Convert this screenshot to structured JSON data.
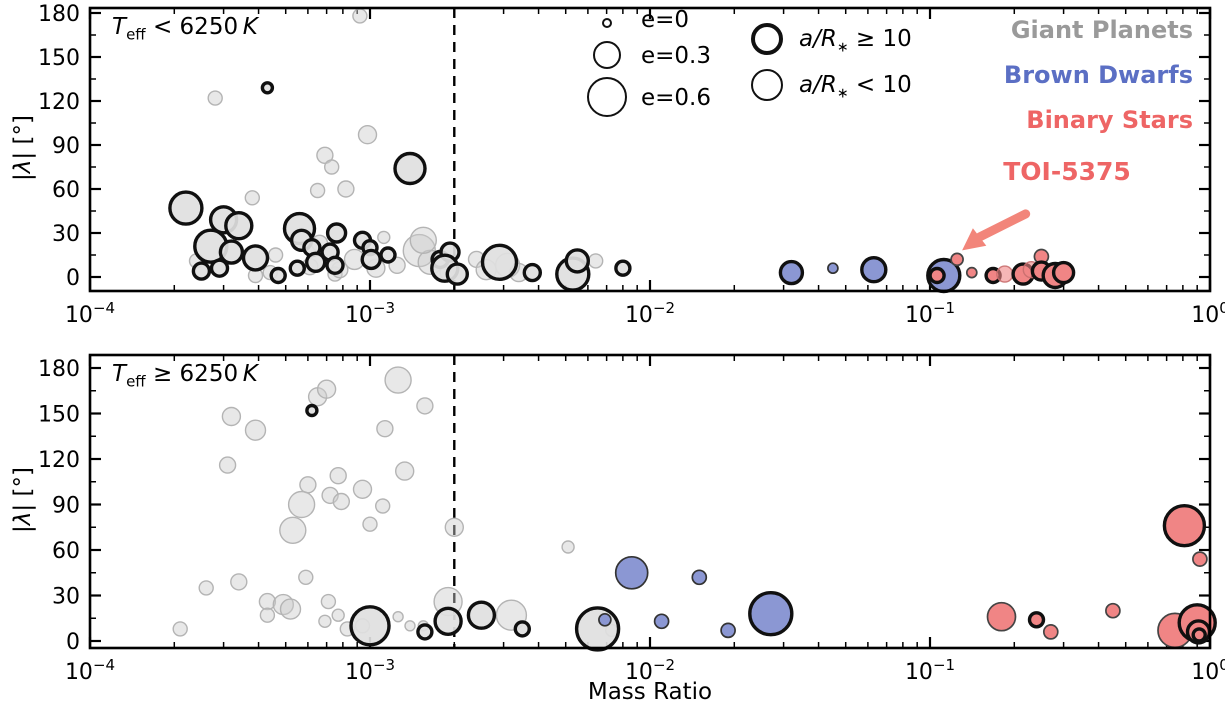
{
  "figure": {
    "xlabel": "Mass Ratio",
    "ylabel": {
      "p1": "|",
      "p2": "λ",
      "p3": "| [°]"
    },
    "colors": {
      "giant_fill": "#e0e0e0",
      "giant_text": "#9a9a9a",
      "bd_fill": "#8b97d3",
      "bd_text": "#5b6fc4",
      "binary_fill": "#f08585",
      "binary_text": "#ee6565",
      "arrow": "#f2857a",
      "axis": "#000000"
    },
    "legend": {
      "size": [
        {
          "label": "e=0",
          "r": 5
        },
        {
          "label": "e=0.3",
          "r": 14
        },
        {
          "label": "e=0.6",
          "r": 20
        }
      ],
      "ring": [
        {
          "prefix": "a/R",
          "sub": "∗",
          "rest": " ≥ 10",
          "style": "thick"
        },
        {
          "prefix": "a/R",
          "sub": "∗",
          "rest": " < 10",
          "style": "thin"
        }
      ],
      "groups": [
        {
          "label": "Giant Planets",
          "color": "#9a9a9a"
        },
        {
          "label": "Brown Dwarfs",
          "color": "#5b6fc4"
        },
        {
          "label": "Binary Stars",
          "color": "#ee6565"
        }
      ]
    },
    "annotation": {
      "text": "TOI-5375"
    }
  },
  "chart_data": {
    "type": "scatter",
    "x_scale": "log",
    "xlabel": "Mass Ratio",
    "ylabel": "|λ| [°]",
    "xlim": [
      0.0001,
      1
    ],
    "ylim": [
      0,
      180
    ],
    "yticks": [
      0,
      30,
      60,
      90,
      120,
      150,
      180
    ],
    "xtick_exponents": [
      -4,
      -3,
      -2,
      -1,
      0
    ],
    "dashed_line_x": 0.002,
    "size_encoding": "circle radius = eccentricity (e=0 small, e=0.3 medium, e=0.6 large)",
    "ring_encoding": "thick outline: a/R* >= 10, thin outline: a/R* < 10",
    "color_encoding": {
      "g": "Giant Planets",
      "b": "Brown Dwarfs",
      "r": "Binary Stars"
    },
    "panels": [
      {
        "id": "teff-lt-6250",
        "label": {
          "t": "T",
          "sub": "eff",
          "cmp": " < ",
          "value": "6250 ",
          "unit": "K"
        },
        "toi": {
          "x": 0.125,
          "y": 12
        },
        "points": [
          [
            0.00028,
            122,
            7,
            "g",
            "f"
          ],
          [
            0.00092,
            178,
            7,
            "g",
            "f"
          ],
          [
            0.00038,
            54,
            7,
            "g",
            "f"
          ],
          [
            0.00065,
            59,
            7,
            "g",
            "f"
          ],
          [
            0.00082,
            60,
            8,
            "g",
            "f"
          ],
          [
            0.00069,
            83,
            8,
            "g",
            "f"
          ],
          [
            0.00098,
            97,
            9,
            "g",
            "f"
          ],
          [
            0.00073,
            75,
            7,
            "g",
            "f"
          ],
          [
            0.00024,
            11,
            7,
            "g",
            "f"
          ],
          [
            0.00039,
            1,
            7,
            "g",
            "f"
          ],
          [
            0.00044,
            3,
            7,
            "g",
            "f"
          ],
          [
            0.00075,
            2,
            7,
            "g",
            "f"
          ],
          [
            0.00066,
            23,
            8,
            "g",
            "f"
          ],
          [
            0.00061,
            7,
            8,
            "g",
            "f"
          ],
          [
            0.00078,
            5,
            8,
            "g",
            "f"
          ],
          [
            0.00088,
            12,
            10,
            "g",
            "f"
          ],
          [
            0.00105,
            6,
            9,
            "g",
            "f"
          ],
          [
            0.0015,
            18,
            16,
            "g",
            "f"
          ],
          [
            0.00164,
            10,
            12,
            "g",
            "f"
          ],
          [
            0.00155,
            25,
            13,
            "g",
            "f"
          ],
          [
            0.0019,
            3,
            8,
            "g",
            "f"
          ],
          [
            0.0024,
            12,
            8,
            "g",
            "f"
          ],
          [
            0.0026,
            5,
            10,
            "g",
            "f"
          ],
          [
            0.0031,
            8,
            12,
            "g",
            "f"
          ],
          [
            0.0034,
            3,
            9,
            "g",
            "f"
          ],
          [
            0.0064,
            11,
            7,
            "g",
            "f"
          ],
          [
            0.00125,
            8,
            8,
            "g",
            "f"
          ],
          [
            0.00046,
            15,
            7,
            "g",
            "f"
          ],
          [
            0.00112,
            27,
            6,
            "g",
            "f"
          ],
          [
            0.00043,
            129,
            5,
            "g",
            "t"
          ],
          [
            0.00022,
            47,
            16,
            "g",
            "t"
          ],
          [
            0.0003,
            39,
            13,
            "g",
            "t"
          ],
          [
            0.00034,
            35,
            13,
            "g",
            "t"
          ],
          [
            0.00027,
            21,
            16,
            "g",
            "t"
          ],
          [
            0.00032,
            17,
            11,
            "g",
            "t"
          ],
          [
            0.00039,
            13,
            12,
            "g",
            "t"
          ],
          [
            0.00025,
            4,
            8,
            "g",
            "t"
          ],
          [
            0.00029,
            6,
            8,
            "g",
            "t"
          ],
          [
            0.00047,
            1,
            7,
            "g",
            "t"
          ],
          [
            0.00056,
            33,
            15,
            "g",
            "t"
          ],
          [
            0.00057,
            25,
            10,
            "g",
            "t"
          ],
          [
            0.00062,
            20,
            8,
            "g",
            "t"
          ],
          [
            0.00064,
            10,
            9,
            "g",
            "t"
          ],
          [
            0.00055,
            6,
            7,
            "g",
            "t"
          ],
          [
            0.00076,
            30,
            9,
            "g",
            "t"
          ],
          [
            0.00072,
            17,
            8,
            "g",
            "t"
          ],
          [
            0.00075,
            8,
            8,
            "g",
            "t"
          ],
          [
            0.00094,
            25,
            8,
            "g",
            "t"
          ],
          [
            0.001,
            20,
            7,
            "g",
            "t"
          ],
          [
            0.00101,
            12,
            9,
            "g",
            "t"
          ],
          [
            0.00116,
            15,
            7,
            "g",
            "t"
          ],
          [
            0.00139,
            74,
            15,
            "g",
            "t"
          ],
          [
            0.00178,
            12,
            8,
            "g",
            "t"
          ],
          [
            0.00193,
            17,
            9,
            "g",
            "t"
          ],
          [
            0.00185,
            6,
            13,
            "g",
            "t"
          ],
          [
            0.00205,
            2,
            10,
            "g",
            "t"
          ],
          [
            0.0029,
            10,
            17,
            "g",
            "t"
          ],
          [
            0.0038,
            3,
            8,
            "g",
            "t"
          ],
          [
            0.0053,
            2,
            16,
            "g",
            "t"
          ],
          [
            0.0055,
            11,
            11,
            "g",
            "t"
          ],
          [
            0.008,
            6,
            7,
            "g",
            "t"
          ],
          [
            0.032,
            3,
            11,
            "b",
            "t"
          ],
          [
            0.045,
            6,
            5,
            "b",
            "n"
          ],
          [
            0.063,
            5,
            12,
            "b",
            "t"
          ],
          [
            0.112,
            1,
            16,
            "b",
            "t"
          ],
          [
            0.106,
            1,
            7,
            "r",
            "t"
          ],
          [
            0.125,
            12,
            6,
            "r",
            "n"
          ],
          [
            0.141,
            3,
            5,
            "r",
            "n"
          ],
          [
            0.168,
            1,
            7,
            "r",
            "t"
          ],
          [
            0.185,
            2,
            8,
            "r",
            "f"
          ],
          [
            0.215,
            2,
            10,
            "r",
            "t"
          ],
          [
            0.23,
            5,
            8,
            "r",
            "f"
          ],
          [
            0.25,
            14,
            7,
            "r",
            "n"
          ],
          [
            0.25,
            4,
            9,
            "r",
            "t"
          ],
          [
            0.28,
            1,
            12,
            "r",
            "t"
          ],
          [
            0.3,
            3,
            10,
            "r",
            "t"
          ]
        ]
      },
      {
        "id": "teff-ge-6250",
        "label": {
          "t": "T",
          "sub": "eff",
          "cmp": " ≥ ",
          "value": "6250 ",
          "unit": "K"
        },
        "points": [
          [
            0.00032,
            148,
            9,
            "g",
            "f"
          ],
          [
            0.00039,
            139,
            10,
            "g",
            "f"
          ],
          [
            0.00031,
            116,
            8,
            "g",
            "f"
          ],
          [
            0.00065,
            161,
            9,
            "g",
            "f"
          ],
          [
            0.0007,
            166,
            9,
            "g",
            "f"
          ],
          [
            0.00126,
            172,
            13,
            "g",
            "f"
          ],
          [
            0.00157,
            155,
            8,
            "g",
            "f"
          ],
          [
            0.00113,
            140,
            8,
            "g",
            "f"
          ],
          [
            0.00133,
            112,
            9,
            "g",
            "f"
          ],
          [
            0.0006,
            103,
            8,
            "g",
            "f"
          ],
          [
            0.00057,
            90,
            13,
            "g",
            "f"
          ],
          [
            0.00072,
            96,
            8,
            "g",
            "f"
          ],
          [
            0.00079,
            92,
            8,
            "g",
            "f"
          ],
          [
            0.00094,
            100,
            9,
            "g",
            "f"
          ],
          [
            0.00077,
            109,
            8,
            "g",
            "f"
          ],
          [
            0.00111,
            89,
            7,
            "g",
            "f"
          ],
          [
            0.00053,
            73,
            13,
            "g",
            "f"
          ],
          [
            0.001,
            77,
            7,
            "g",
            "f"
          ],
          [
            0.002,
            75,
            9,
            "g",
            "f"
          ],
          [
            0.00026,
            35,
            7,
            "g",
            "f"
          ],
          [
            0.00034,
            39,
            8,
            "g",
            "f"
          ],
          [
            0.00059,
            42,
            7,
            "g",
            "f"
          ],
          [
            0.00021,
            8,
            7,
            "g",
            "f"
          ],
          [
            0.00043,
            26,
            8,
            "g",
            "f"
          ],
          [
            0.00043,
            17,
            7,
            "g",
            "f"
          ],
          [
            0.00049,
            24,
            10,
            "g",
            "f"
          ],
          [
            0.00052,
            21,
            10,
            "g",
            "f"
          ],
          [
            0.00071,
            26,
            7,
            "g",
            "f"
          ],
          [
            0.00069,
            13,
            6,
            "g",
            "f"
          ],
          [
            0.00077,
            17,
            6,
            "g",
            "f"
          ],
          [
            0.00083,
            8,
            7,
            "g",
            "f"
          ],
          [
            0.00094,
            10,
            7,
            "g",
            "f"
          ],
          [
            0.00126,
            16,
            5,
            "g",
            "f"
          ],
          [
            0.00139,
            10,
            5,
            "g",
            "f"
          ],
          [
            0.00155,
            10,
            5,
            "g",
            "f"
          ],
          [
            0.0019,
            26,
            14,
            "g",
            "f"
          ],
          [
            0.0032,
            17,
            15,
            "g",
            "f"
          ],
          [
            0.0051,
            62,
            6,
            "g",
            "f"
          ],
          [
            0.0073,
            7,
            6,
            "g",
            "f"
          ],
          [
            0.00062,
            152,
            5,
            "g",
            "t"
          ],
          [
            0.001,
            10,
            19,
            "g",
            "t"
          ],
          [
            0.00157,
            6,
            7,
            "g",
            "t"
          ],
          [
            0.0019,
            13,
            13,
            "g",
            "t"
          ],
          [
            0.0025,
            17,
            13,
            "g",
            "t"
          ],
          [
            0.0035,
            8,
            7,
            "g",
            "t"
          ],
          [
            0.0065,
            8,
            21,
            "g",
            "t"
          ],
          [
            0.0069,
            14,
            6,
            "b",
            "n"
          ],
          [
            0.0086,
            45,
            16,
            "b",
            "n"
          ],
          [
            0.011,
            13,
            7,
            "b",
            "n"
          ],
          [
            0.015,
            42,
            7,
            "b",
            "n"
          ],
          [
            0.019,
            7,
            7,
            "b",
            "n"
          ],
          [
            0.027,
            18,
            21,
            "b",
            "t"
          ],
          [
            0.18,
            16,
            14,
            "r",
            "n"
          ],
          [
            0.24,
            14,
            7,
            "r",
            "t"
          ],
          [
            0.27,
            6,
            7,
            "r",
            "n"
          ],
          [
            0.45,
            20,
            7,
            "r",
            "n"
          ],
          [
            0.81,
            76,
            20,
            "r",
            "t"
          ],
          [
            0.92,
            54,
            7,
            "r",
            "n"
          ],
          [
            0.75,
            7,
            17,
            "r",
            "n"
          ],
          [
            0.9,
            12,
            18,
            "r",
            "t"
          ],
          [
            0.91,
            6,
            11,
            "r",
            "t"
          ],
          [
            0.915,
            4,
            6,
            "r",
            "t"
          ]
        ]
      }
    ]
  }
}
